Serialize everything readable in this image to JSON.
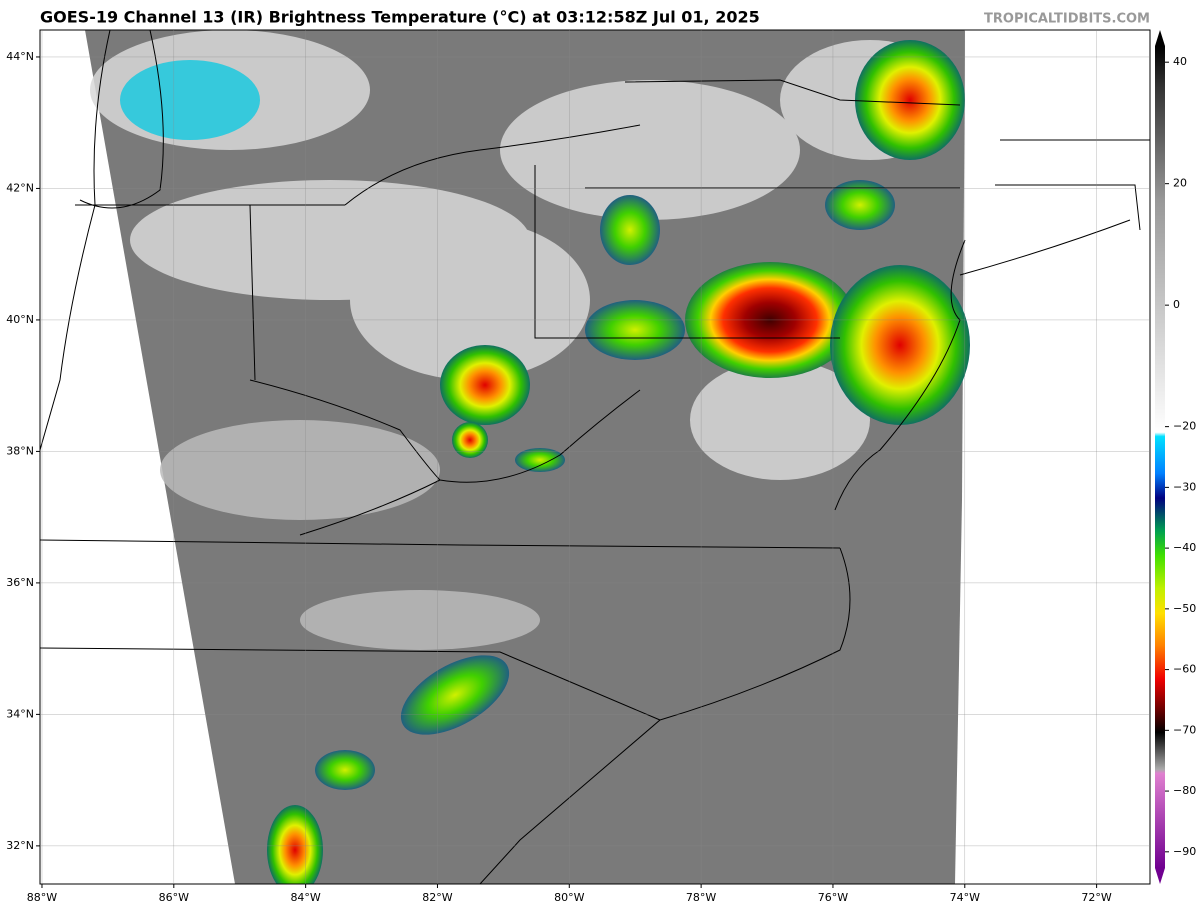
{
  "header": {
    "title": "GOES-19 Channel 13 (IR) Brightness Temperature (°C) at 03:12:58Z Jul 01, 2025",
    "source": "TROPICALTIDBITS.COM"
  },
  "map": {
    "xlim": [
      -88.03,
      -71.19
    ],
    "ylim": [
      31.42,
      44.41
    ],
    "lat_ticks": [
      {
        "value": 32,
        "label": "32°N"
      },
      {
        "value": 34,
        "label": "34°N"
      },
      {
        "value": 36,
        "label": "36°N"
      },
      {
        "value": 38,
        "label": "38°N"
      },
      {
        "value": 40,
        "label": "40°N"
      },
      {
        "value": 42,
        "label": "42°N"
      },
      {
        "value": 44,
        "label": "44°N"
      }
    ],
    "lon_ticks": [
      {
        "value": -88,
        "label": "88°W"
      },
      {
        "value": -86,
        "label": "86°W"
      },
      {
        "value": -84,
        "label": "84°W"
      },
      {
        "value": -82,
        "label": "82°W"
      },
      {
        "value": -80,
        "label": "80°W"
      },
      {
        "value": -78,
        "label": "78°W"
      },
      {
        "value": -76,
        "label": "76°W"
      },
      {
        "value": -74,
        "label": "74°W"
      },
      {
        "value": -72,
        "label": "72°W"
      }
    ]
  },
  "colorbar": {
    "range": [
      -95.3,
      45.3
    ],
    "ticks": [
      40,
      20,
      0,
      {
        "value": -20,
        "label": "−20"
      },
      {
        "value": -30,
        "label": "−30"
      },
      {
        "value": -40,
        "label": "−40"
      },
      {
        "value": -50,
        "label": "−50"
      },
      {
        "value": -60,
        "label": "−60"
      },
      {
        "value": -70,
        "label": "−70"
      },
      {
        "value": -80,
        "label": "−80"
      },
      {
        "value": -90,
        "label": "−90"
      }
    ]
  }
}
